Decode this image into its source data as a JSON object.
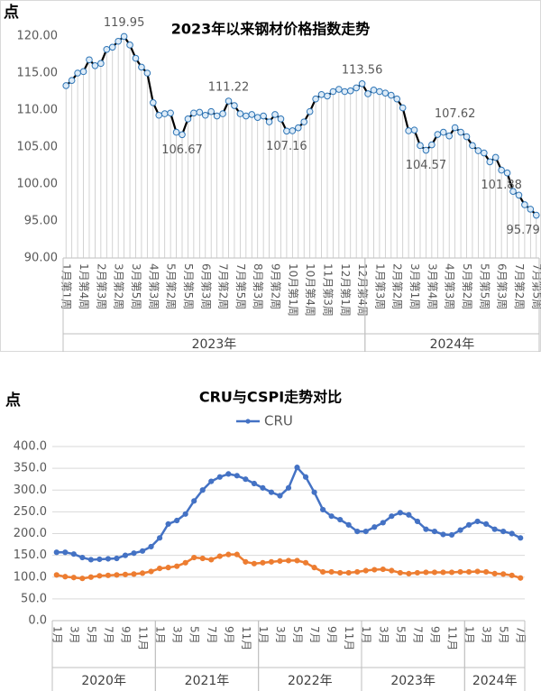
{
  "chart_data": [
    {
      "type": "line",
      "title": "2023年以来钢材价格指数走势",
      "y_label": "点",
      "ylim": [
        90,
        120
      ],
      "yticks": [
        {
          "value": 90,
          "label": "90.00"
        },
        {
          "value": 95,
          "label": "95.00"
        },
        {
          "value": 100,
          "label": "100.00"
        },
        {
          "value": 105,
          "label": "105.00"
        },
        {
          "value": 110,
          "label": "110.00"
        },
        {
          "value": 115,
          "label": "115.00"
        },
        {
          "value": 120,
          "label": "120.00"
        }
      ],
      "grid": false,
      "drop_lines": true,
      "groups": [
        {
          "label": "2023年",
          "categories": [
            "1月第1周",
            null,
            null,
            "1月第4周",
            null,
            null,
            "2月第3周",
            null,
            null,
            "3月第2周",
            null,
            null,
            "3月第5周",
            null,
            null,
            "4月第3周",
            null,
            null,
            "5月第2周",
            null,
            null,
            "5月第5周",
            null,
            null,
            "6月第3周",
            null,
            null,
            "7月第2周",
            null,
            null,
            "7月第5周",
            null,
            null,
            "8月第3周",
            null,
            null,
            "9月第2周",
            null,
            null,
            "10月第1周",
            null,
            null,
            "10月第4周",
            null,
            null,
            "11月第3周",
            null,
            null,
            "12月第1周",
            null,
            null,
            "12月第4周"
          ]
        },
        {
          "label": "2024年",
          "categories": [
            null,
            null,
            "1月第3周",
            null,
            null,
            "2月第2周",
            null,
            null,
            "3月第1周",
            null,
            null,
            "3月第4周",
            null,
            null,
            "4月第3周",
            null,
            null,
            "5月第2周",
            null,
            null,
            "5月第5周",
            null,
            null,
            "6月第3周",
            null,
            null,
            "7月第2周",
            null,
            null,
            "7月第5周"
          ]
        }
      ],
      "series": [
        {
          "color": "#000000",
          "marker_color": "#2e75b6",
          "marker_fill": "#ddebf7",
          "values": [
            113.3,
            114.0,
            115.0,
            115.2,
            116.8,
            116.0,
            116.3,
            118.2,
            118.5,
            119.3,
            119.95,
            118.8,
            117.0,
            115.8,
            115.0,
            111.0,
            109.3,
            109.5,
            109.6,
            107.0,
            106.67,
            108.8,
            109.6,
            109.7,
            109.3,
            109.8,
            109.2,
            109.5,
            111.22,
            110.6,
            109.5,
            109.2,
            109.4,
            109.0,
            109.2,
            108.4,
            109.4,
            108.8,
            107.16,
            107.2,
            107.6,
            108.4,
            109.8,
            111.5,
            112.1,
            111.9,
            112.5,
            112.8,
            112.5,
            112.6,
            113.0,
            113.56,
            112.2,
            112.7,
            112.5,
            112.3,
            112.0,
            111.5,
            110.3,
            107.2,
            107.3,
            105.2,
            104.57,
            105.3,
            106.7,
            107.0,
            106.5,
            107.62,
            107.0,
            106.4,
            105.2,
            104.5,
            104.2,
            103.0,
            103.6,
            101.88,
            101.5,
            99.0,
            98.5,
            97.2,
            96.6,
            95.79
          ],
          "value_labels": [
            null,
            null,
            null,
            null,
            null,
            null,
            null,
            null,
            null,
            null,
            "119.95",
            null,
            null,
            null,
            null,
            null,
            null,
            null,
            null,
            null,
            "106.67",
            null,
            null,
            null,
            null,
            null,
            null,
            null,
            "111.22",
            null,
            null,
            null,
            null,
            null,
            null,
            null,
            null,
            null,
            "107.16",
            null,
            null,
            null,
            null,
            null,
            null,
            null,
            null,
            null,
            null,
            null,
            null,
            "113.56",
            null,
            null,
            null,
            null,
            null,
            null,
            null,
            null,
            null,
            null,
            "104.57",
            null,
            null,
            null,
            null,
            "107.62",
            null,
            null,
            null,
            null,
            null,
            null,
            null,
            "101.88",
            null,
            null,
            null,
            null,
            null,
            "95.79"
          ]
        }
      ]
    },
    {
      "type": "line",
      "title": "CRU与CSPI走势对比",
      "y_label": "点",
      "ylim": [
        0,
        400
      ],
      "yticks": [
        {
          "value": 0,
          "label": "0.0"
        },
        {
          "value": 50,
          "label": "50.0"
        },
        {
          "value": 100,
          "label": "100.0"
        },
        {
          "value": 150,
          "label": "150.0"
        },
        {
          "value": 200,
          "label": "200.0"
        },
        {
          "value": 250,
          "label": "250.0"
        },
        {
          "value": 300,
          "label": "300.0"
        },
        {
          "value": 350,
          "label": "350.0"
        },
        {
          "value": 400,
          "label": "400.0"
        }
      ],
      "grid": true,
      "drop_lines": false,
      "groups": [
        {
          "label": "2020年",
          "categories": [
            "1月",
            null,
            "3月",
            null,
            "5月",
            null,
            "7月",
            null,
            "9月",
            null,
            "11月",
            null
          ]
        },
        {
          "label": "2021年",
          "categories": [
            "1月",
            null,
            "3月",
            null,
            "5月",
            null,
            "7月",
            null,
            "9月",
            null,
            "11月",
            null
          ]
        },
        {
          "label": "2022年",
          "categories": [
            "1月",
            null,
            "3月",
            null,
            "5月",
            null,
            "7月",
            null,
            "9月",
            null,
            "11月",
            null
          ]
        },
        {
          "label": "2023年",
          "categories": [
            "1月",
            null,
            "3月",
            null,
            "5月",
            null,
            "7月",
            null,
            "9月",
            null,
            "11月",
            null
          ]
        },
        {
          "label": "2024年",
          "categories": [
            "1月",
            null,
            "3月",
            null,
            "5月",
            null,
            "7月"
          ]
        }
      ],
      "series": [
        {
          "name": "CRU",
          "color": "#4472c4",
          "marker_color": "#4472c4",
          "marker_fill": "#4472c4",
          "values": [
            157,
            157,
            153,
            145,
            140,
            141,
            142,
            143,
            150,
            155,
            160,
            170,
            190,
            222,
            230,
            245,
            275,
            300,
            320,
            330,
            337,
            333,
            325,
            315,
            305,
            295,
            287,
            305,
            352,
            330,
            295,
            255,
            240,
            232,
            220,
            205,
            205,
            215,
            225,
            240,
            248,
            243,
            228,
            210,
            205,
            198,
            197,
            208,
            220,
            228,
            222,
            210,
            205,
            200,
            190
          ]
        },
        {
          "color": "#ed7d31",
          "marker_color": "#ed7d31",
          "marker_fill": "#ed7d31",
          "values": [
            105,
            101,
            99,
            97,
            100,
            103,
            104,
            105,
            106,
            107,
            109,
            113,
            120,
            122,
            125,
            133,
            145,
            143,
            140,
            148,
            152,
            152,
            135,
            131,
            133,
            135,
            137,
            138,
            138,
            133,
            122,
            112,
            112,
            110,
            110,
            112,
            115,
            117,
            118,
            115,
            110,
            108,
            110,
            111,
            111,
            111,
            111,
            112,
            112,
            113,
            112,
            108,
            107,
            104,
            98
          ]
        }
      ]
    }
  ]
}
